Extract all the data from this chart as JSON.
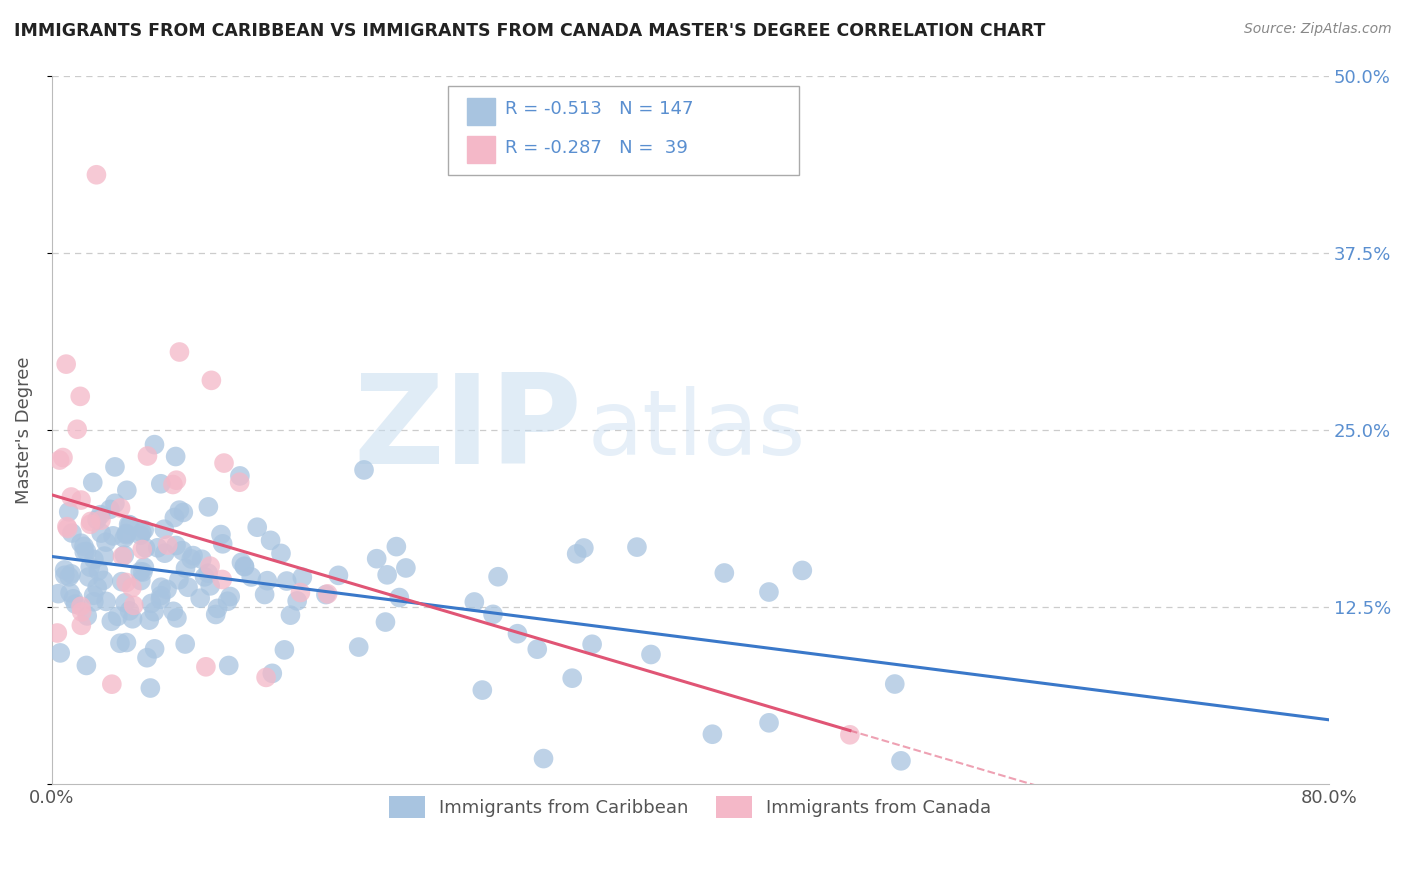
{
  "title": "IMMIGRANTS FROM CARIBBEAN VS IMMIGRANTS FROM CANADA MASTER'S DEGREE CORRELATION CHART",
  "source": "Source: ZipAtlas.com",
  "ylabel": "Master's Degree",
  "xlim": [
    0,
    0.8
  ],
  "ylim": [
    0,
    0.5
  ],
  "xticks": [
    0.0,
    0.2,
    0.4,
    0.6,
    0.8
  ],
  "yticks": [
    0.0,
    0.125,
    0.25,
    0.375,
    0.5
  ],
  "xtick_labels": [
    "0.0%",
    "",
    "",
    "",
    "80.0%"
  ],
  "ytick_labels_right": [
    "",
    "12.5%",
    "25.0%",
    "37.5%",
    "50.0%"
  ],
  "legend_labels": [
    "Immigrants from Caribbean",
    "Immigrants from Canada"
  ],
  "series1_color": "#a8c4e0",
  "series2_color": "#f4b8c8",
  "line1_color": "#3a78c9",
  "line2_color": "#e05575",
  "R1": -0.513,
  "N1": 147,
  "R2": -0.287,
  "N2": 39,
  "watermark_zip": "ZIP",
  "watermark_atlas": "atlas",
  "background_color": "#ffffff",
  "grid_color": "#cccccc",
  "title_color": "#222222",
  "axis_color": "#555555",
  "ytick_color": "#5a8fd0",
  "seed1": 42,
  "seed2": 99
}
